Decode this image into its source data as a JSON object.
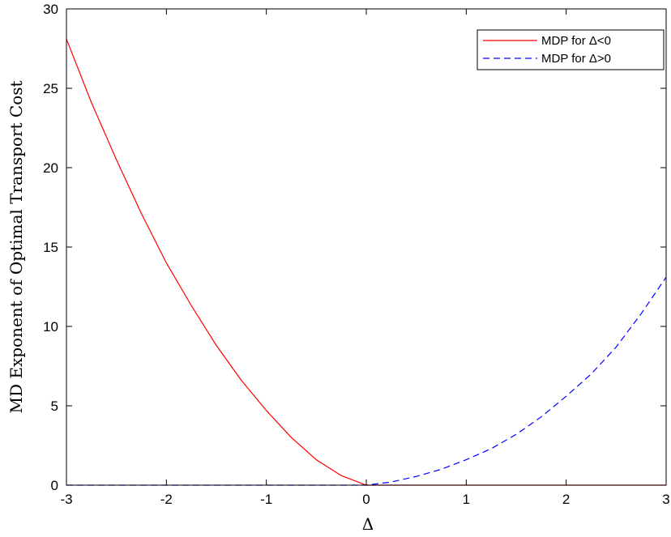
{
  "chart_data": {
    "type": "line",
    "title": "",
    "xlabel": "Δ",
    "ylabel": "MD Exponent of Optimal Transport Cost",
    "xlim": [
      -3,
      3
    ],
    "ylim": [
      0,
      30
    ],
    "xticks": [
      -3,
      -2,
      -1,
      0,
      1,
      2,
      3
    ],
    "yticks": [
      0,
      5,
      10,
      15,
      20,
      25,
      30
    ],
    "grid": false,
    "legend_position": "top-right",
    "series": [
      {
        "name": "MDP for  Δ<0",
        "color": "#ff0000",
        "style": "solid",
        "x": [
          -3,
          -2.75,
          -2.5,
          -2.25,
          -2,
          -1.75,
          -1.5,
          -1.25,
          -1,
          -0.75,
          -0.5,
          -0.25,
          0,
          0.5,
          1,
          1.5,
          2,
          2.5,
          3
        ],
        "y": [
          28.1,
          24.1,
          20.5,
          17.1,
          14.0,
          11.3,
          8.8,
          6.6,
          4.7,
          3.0,
          1.6,
          0.6,
          0,
          0,
          0,
          0,
          0,
          0,
          0
        ]
      },
      {
        "name": "MDP for  Δ>0",
        "color": "#0000ff",
        "style": "dashed",
        "x": [
          -3,
          -2,
          -1,
          0,
          0.25,
          0.5,
          0.75,
          1,
          1.25,
          1.5,
          1.75,
          2,
          2.25,
          2.5,
          2.75,
          3
        ],
        "y": [
          0,
          0,
          0,
          0,
          0.2,
          0.55,
          1.0,
          1.6,
          2.3,
          3.2,
          4.3,
          5.6,
          7.0,
          8.7,
          10.8,
          13.1
        ]
      }
    ]
  }
}
